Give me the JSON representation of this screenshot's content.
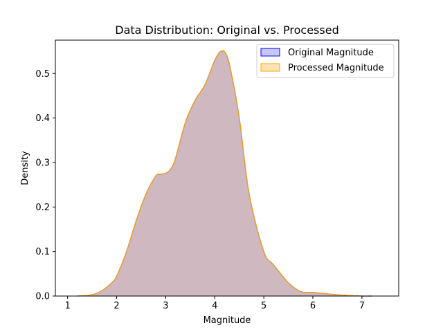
{
  "chart_data": {
    "type": "area",
    "title": "Data Distribution: Original vs. Processed",
    "xlabel": "Magnitude",
    "ylabel": "Density",
    "xlim": [
      0.75,
      7.75
    ],
    "ylim": [
      0.0,
      0.575
    ],
    "xticks": [
      1,
      2,
      3,
      4,
      5,
      6,
      7
    ],
    "xtick_labels": [
      "1",
      "2",
      "3",
      "4",
      "5",
      "6",
      "7"
    ],
    "yticks": [
      0.0,
      0.1,
      0.2,
      0.3,
      0.4,
      0.5
    ],
    "ytick_labels": [
      "0.0",
      "0.1",
      "0.2",
      "0.3",
      "0.4",
      "0.5"
    ],
    "legend_position": "top-right",
    "x": [
      1.2,
      1.5,
      1.7,
      1.9,
      2.0,
      2.2,
      2.4,
      2.6,
      2.8,
      2.9,
      3.0,
      3.1,
      3.2,
      3.4,
      3.6,
      3.8,
      4.0,
      4.1,
      4.15,
      4.2,
      4.3,
      4.5,
      4.7,
      5.0,
      5.2,
      5.5,
      5.75,
      6.0,
      6.2,
      6.5,
      6.8,
      7.0,
      7.2
    ],
    "series": [
      {
        "name": "Original Magnitude",
        "fill": "#0000ff",
        "stroke": "#0000ff",
        "legend_fill": "#c6c6f7",
        "values": [
          0.0,
          0.003,
          0.012,
          0.03,
          0.045,
          0.1,
          0.17,
          0.23,
          0.27,
          0.274,
          0.276,
          0.285,
          0.31,
          0.39,
          0.44,
          0.475,
          0.53,
          0.548,
          0.55,
          0.549,
          0.52,
          0.4,
          0.23,
          0.1,
          0.07,
          0.03,
          0.01,
          0.008,
          0.006,
          0.003,
          0.001,
          0.0,
          0.0
        ]
      },
      {
        "name": "Processed Magnitude",
        "fill": "#ffa500",
        "stroke": "#ffa500",
        "legend_fill": "#fde2b3",
        "values": [
          0.0,
          0.003,
          0.012,
          0.03,
          0.045,
          0.1,
          0.17,
          0.23,
          0.27,
          0.274,
          0.276,
          0.285,
          0.31,
          0.39,
          0.44,
          0.475,
          0.53,
          0.548,
          0.55,
          0.549,
          0.52,
          0.4,
          0.23,
          0.1,
          0.07,
          0.03,
          0.01,
          0.008,
          0.006,
          0.003,
          0.001,
          0.0,
          0.0
        ]
      }
    ]
  }
}
